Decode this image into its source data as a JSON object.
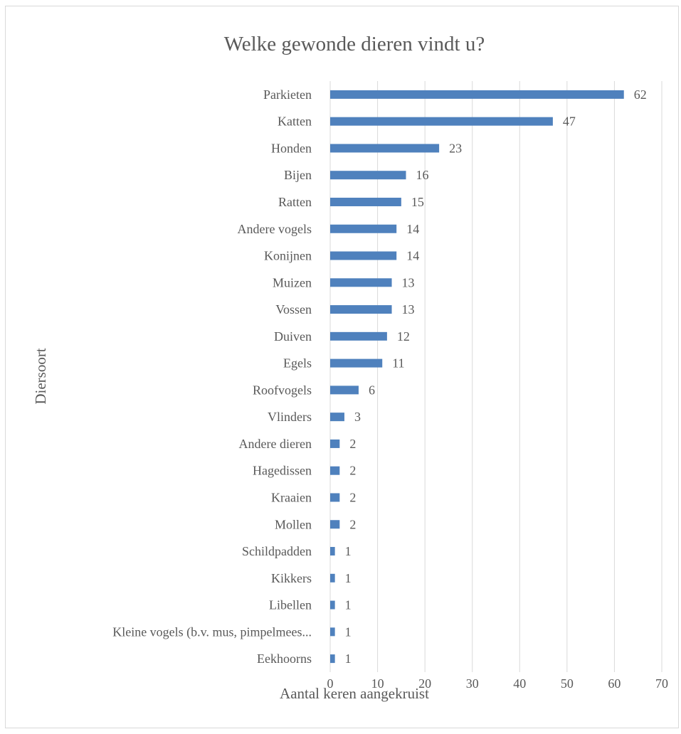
{
  "chart_data": {
    "type": "bar",
    "orientation": "horizontal",
    "title": "Welke gewonde dieren vindt u?",
    "xlabel": "Aantal keren aangekruist",
    "ylabel": "Diersoort",
    "xlim": [
      0,
      70
    ],
    "xticks": [
      "0",
      "10",
      "20",
      "30",
      "40",
      "50",
      "60",
      "70"
    ],
    "grid": "vertical",
    "bar_color": "#4f81bd",
    "categories": [
      "Parkieten",
      "Katten",
      "Honden",
      "Bijen",
      "Ratten",
      "Andere vogels",
      "Konijnen",
      "Muizen",
      "Vossen",
      "Duiven",
      "Egels",
      "Roofvogels",
      "Vlinders",
      "Andere dieren",
      "Hagedissen",
      "Kraaien",
      "Mollen",
      "Schildpadden",
      "Kikkers",
      "Libellen",
      "Kleine vogels (b.v. mus, pimpelmees...",
      "Eekhoorns"
    ],
    "values": [
      62,
      47,
      23,
      16,
      15,
      14,
      14,
      13,
      13,
      12,
      11,
      6,
      3,
      2,
      2,
      2,
      2,
      1,
      1,
      1,
      1,
      1
    ]
  }
}
